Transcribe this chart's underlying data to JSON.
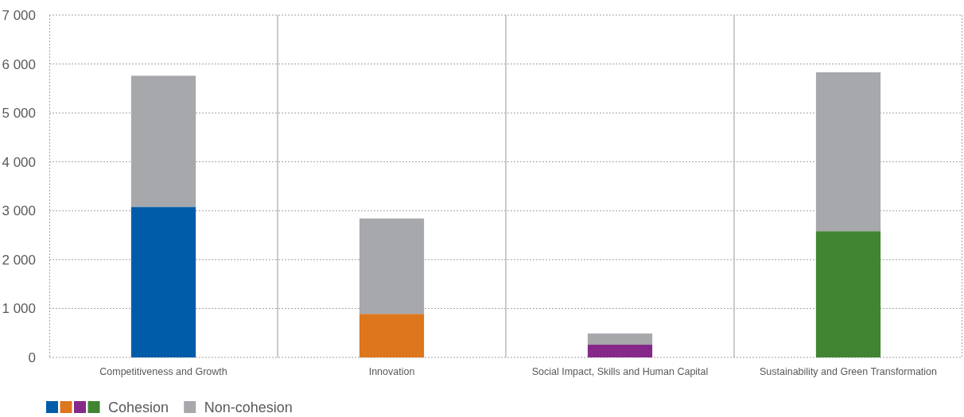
{
  "chart_data": {
    "type": "bar",
    "stacked": true,
    "categories": [
      "Competitiveness and Growth",
      "Innovation",
      "Social Impact, Skills and Human Capital",
      "Sustainability and Green Transformation"
    ],
    "series": [
      {
        "name": "Cohesion",
        "colors": [
          "#005ca9",
          "#dd761c",
          "#86288a",
          "#418532"
        ],
        "values": [
          3080,
          890,
          260,
          2580
        ]
      },
      {
        "name": "Non-cohesion",
        "color": "#a7a8ab",
        "values": [
          2680,
          1950,
          230,
          3250
        ]
      }
    ],
    "ylim": [
      0,
      7000
    ],
    "yticks": [
      0,
      {
        "value": 1000,
        "label": "1 000"
      },
      {
        "value": 2000,
        "label": "2 000"
      },
      {
        "value": 3000,
        "label": "3 000"
      },
      {
        "value": 4000,
        "label": "4 000"
      },
      {
        "value": 5000,
        "label": "5 000"
      },
      {
        "value": 6000,
        "label": "6 000"
      },
      {
        "value": 7000,
        "label": "7 000"
      }
    ],
    "grid": true,
    "legend": "bottom left"
  }
}
